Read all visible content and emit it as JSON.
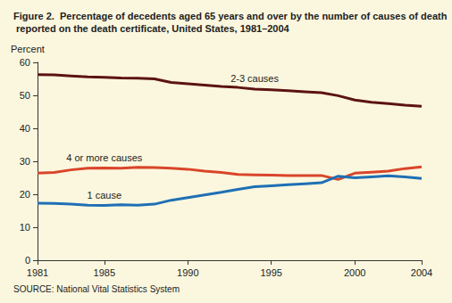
{
  "chart_data": {
    "type": "line",
    "title": "Figure 2.  Percentage of decedents aged 65 years and over by the number of causes of death reported on the death certificate, United States, 1981–2004",
    "ylabel": "Percent",
    "source": "SOURCE: National Vital Statistics System",
    "x": [
      1981,
      1982,
      1983,
      1984,
      1985,
      1986,
      1987,
      1988,
      1989,
      1990,
      1991,
      1992,
      1993,
      1994,
      1995,
      1996,
      1997,
      1998,
      1999,
      2000,
      2001,
      2002,
      2003,
      2004
    ],
    "series": [
      {
        "name": "2-3 causes",
        "color": "#5c1410",
        "values": [
          56.3,
          56.2,
          55.9,
          55.6,
          55.5,
          55.3,
          55.2,
          55.0,
          53.9,
          53.5,
          53.1,
          52.7,
          52.4,
          51.9,
          51.7,
          51.4,
          51.1,
          50.8,
          49.9,
          48.6,
          47.9,
          47.5,
          47.0,
          46.7
        ]
      },
      {
        "name": "4 or more causes",
        "color": "#d9452a",
        "values": [
          26.4,
          26.6,
          27.4,
          27.9,
          28.0,
          27.9,
          28.2,
          28.1,
          27.9,
          27.6,
          27.0,
          26.6,
          26.0,
          25.9,
          25.8,
          25.7,
          25.7,
          25.7,
          24.5,
          26.4,
          26.7,
          27.0,
          27.8,
          28.3
        ]
      },
      {
        "name": "1 cause",
        "color": "#1f6fb5",
        "values": [
          17.3,
          17.2,
          17.0,
          16.7,
          16.6,
          16.8,
          16.7,
          17.0,
          18.2,
          19.0,
          19.8,
          20.6,
          21.5,
          22.3,
          22.6,
          22.9,
          23.2,
          23.5,
          25.5,
          25.0,
          25.3,
          25.6,
          25.3,
          24.8
        ]
      }
    ],
    "xlim": [
      1981,
      2004
    ],
    "xticks": [
      1981,
      1985,
      1990,
      1995,
      2000,
      2004
    ],
    "ylim": [
      0,
      60
    ],
    "yticks": [
      0,
      10,
      20,
      30,
      40,
      50,
      60
    ],
    "grid": false
  }
}
